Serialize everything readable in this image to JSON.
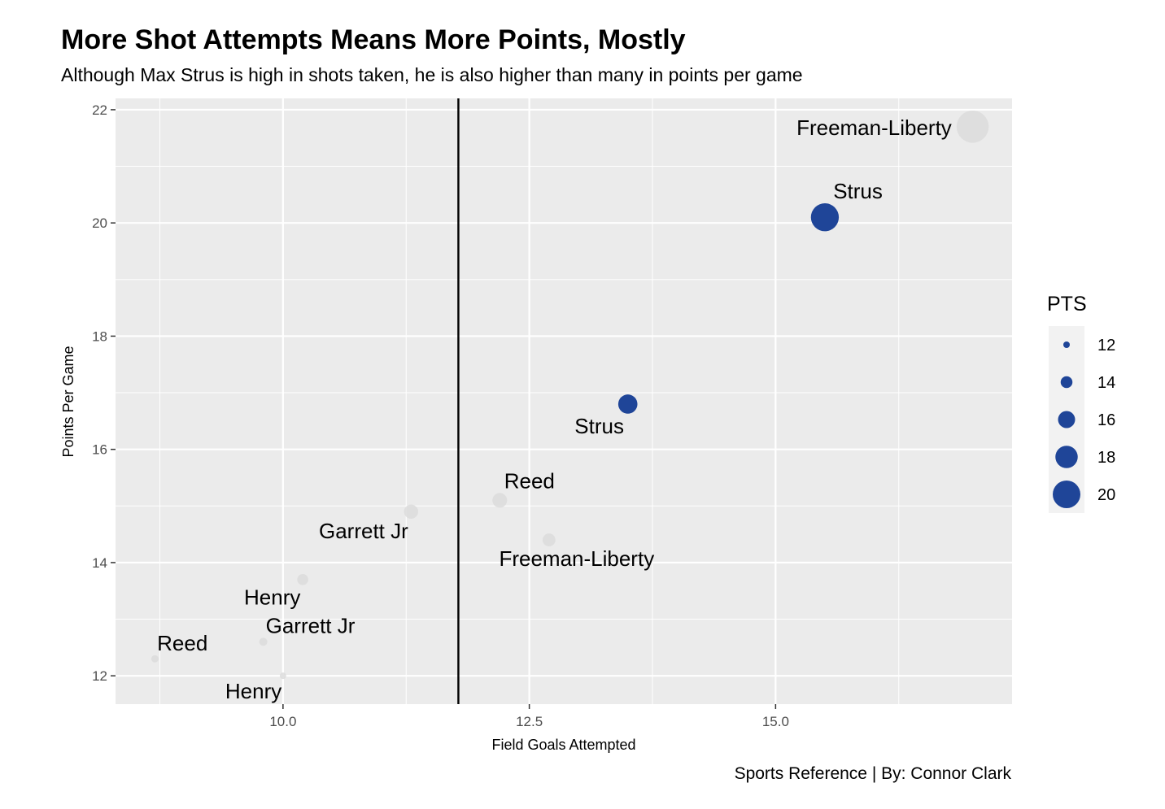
{
  "title": "More Shot Attempts Means More Points, Mostly",
  "subtitle": "Although Max Strus is high in shots taken, he is also higher than many in points per game",
  "caption": "Sports Reference | By: Connor Clark",
  "chart_data": {
    "type": "scatter",
    "xlabel": "Field Goals Attempted",
    "ylabel": "Points Per Game",
    "xlim": [
      8.3,
      17.4
    ],
    "ylim": [
      11.5,
      22.2
    ],
    "xticks": [
      10.0,
      12.5,
      15.0
    ],
    "xtick_labels": [
      "10.0",
      "12.5",
      "15.0"
    ],
    "yticks": [
      12,
      14,
      16,
      18,
      20,
      22
    ],
    "ytick_labels": [
      "12",
      "14",
      "16",
      "18",
      "20",
      "22"
    ],
    "vline_x": 11.78,
    "grid": true,
    "legend_placement": "right",
    "size_legend": {
      "title": "PTS",
      "values": [
        12,
        14,
        16,
        18,
        20
      ],
      "labels": [
        "12",
        "14",
        "16",
        "18",
        "20"
      ]
    },
    "colors": {
      "highlight": "#1f4598",
      "other": "#dcdcdc",
      "panel": "#ebebeb",
      "grid": "#ffffff",
      "vline": "#000000"
    },
    "points": [
      {
        "player": "Reed",
        "fga": 8.7,
        "ppg": 12.3,
        "highlight": false,
        "label_pos": "above-right"
      },
      {
        "player": "Garrett Jr",
        "fga": 9.8,
        "ppg": 12.6,
        "highlight": false,
        "label_pos": "above-right"
      },
      {
        "player": "Henry",
        "fga": 10.0,
        "ppg": 12.0,
        "highlight": false,
        "label_pos": "below-left"
      },
      {
        "player": "Henry",
        "fga": 10.2,
        "ppg": 13.7,
        "highlight": false,
        "label_pos": "below-left"
      },
      {
        "player": "Garrett Jr",
        "fga": 11.3,
        "ppg": 14.9,
        "highlight": false,
        "label_pos": "below-left"
      },
      {
        "player": "Reed",
        "fga": 12.2,
        "ppg": 15.1,
        "highlight": false,
        "label_pos": "above-right"
      },
      {
        "player": "Freeman-Liberty",
        "fga": 12.7,
        "ppg": 14.4,
        "highlight": false,
        "label_pos": "below-right"
      },
      {
        "player": "Strus",
        "fga": 13.5,
        "ppg": 16.8,
        "highlight": true,
        "label_pos": "below-left"
      },
      {
        "player": "Strus",
        "fga": 15.5,
        "ppg": 20.1,
        "highlight": true,
        "label_pos": "above-right"
      },
      {
        "player": "Freeman-Liberty",
        "fga": 17.0,
        "ppg": 21.7,
        "highlight": false,
        "label_pos": "left"
      }
    ]
  }
}
